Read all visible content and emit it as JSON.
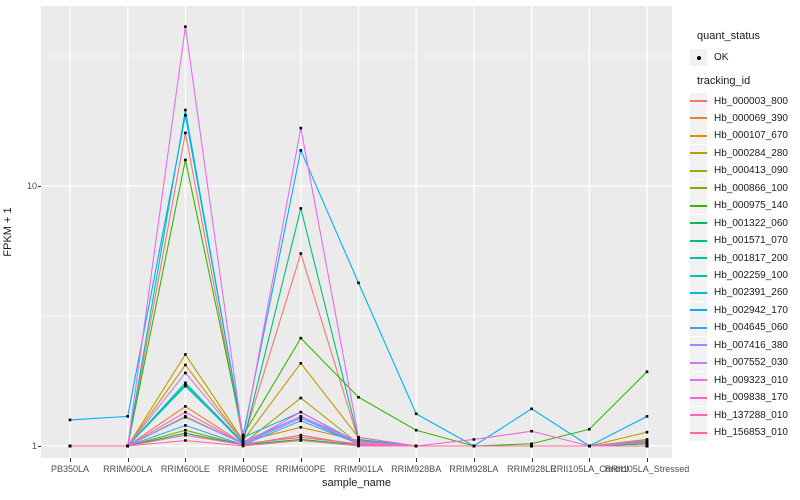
{
  "figure": {
    "background": "#FFFFFF",
    "panel_background": "#EBEBEB",
    "grid_color": "#FFFFFF",
    "tick_color": "#333333",
    "tick_label_color": "#4D4D4D",
    "point_color": "#000000"
  },
  "legend": {
    "quant_status_title": "quant_status",
    "quant_status_items": [
      {
        "label": "OK",
        "marker": "black-point"
      }
    ],
    "tracking_id_title": "tracking_id"
  },
  "chart_data": {
    "type": "line",
    "title": "",
    "xlabel": "sample_name",
    "ylabel": "FPKM + 1",
    "y_scale": "log10",
    "y_ticks": [
      1,
      10
    ],
    "y_minor_gridlines": [
      3.162,
      31.623
    ],
    "ylim": [
      0.9,
      49
    ],
    "grid": "white major/minor on gray panel",
    "legend_position": "right",
    "marker": "small black point on every value",
    "categories": [
      "PB350LA",
      "RRIM600LA",
      "RRIM600LE",
      "RRIM600SE",
      "RRIM600PE",
      "RRIM901LA",
      "RRIM928BA",
      "RRIM928LA",
      "RRIM928LE",
      "RRII105LA_Control",
      "RRII105LA_Stressed"
    ],
    "series": [
      {
        "name": "Hb_000003_800",
        "color": "#F8766D",
        "values": [
          1,
          1,
          16.0,
          1.05,
          5.5,
          1.05,
          1,
          1,
          1,
          1,
          1.02
        ]
      },
      {
        "name": "Hb_000069_390",
        "color": "#EA8331",
        "values": [
          1,
          1,
          1.42,
          1.02,
          1.08,
          1.02,
          1,
          1,
          1,
          1,
          1
        ]
      },
      {
        "name": "Hb_000107_670",
        "color": "#D89000",
        "values": [
          1,
          1,
          2.05,
          1.04,
          1.18,
          1.05,
          1,
          1,
          1,
          1,
          1
        ]
      },
      {
        "name": "Hb_000284_280",
        "color": "#C09B00",
        "values": [
          1,
          1,
          2.25,
          1.05,
          2.08,
          1.08,
          1,
          1,
          1,
          1,
          1.13
        ]
      },
      {
        "name": "Hb_000413_090",
        "color": "#A3A500",
        "values": [
          1,
          1,
          1.3,
          1.02,
          1.53,
          1.02,
          1,
          1,
          1,
          1,
          1.06
        ]
      },
      {
        "name": "Hb_000866_100",
        "color": "#7CAE00",
        "values": [
          1,
          1,
          1.15,
          1.01,
          1.1,
          1.01,
          1,
          1,
          1,
          1,
          1.04
        ]
      },
      {
        "name": "Hb_000975_140",
        "color": "#39B600",
        "values": [
          1,
          1,
          12.6,
          1.1,
          2.6,
          1.54,
          1.15,
          1,
          1.02,
          1.16,
          1.93
        ]
      },
      {
        "name": "Hb_001322_060",
        "color": "#00BB4E",
        "values": [
          1,
          1,
          1.12,
          1.01,
          1.06,
          1.01,
          1,
          1,
          1,
          1,
          1.02
        ]
      },
      {
        "name": "Hb_001571_070",
        "color": "#00BF7D",
        "values": [
          1,
          1,
          1.75,
          1.03,
          8.2,
          1.06,
          1,
          1,
          1,
          1,
          1
        ]
      },
      {
        "name": "Hb_001817_200",
        "color": "#00C1A3",
        "values": [
          1,
          1,
          1.7,
          1.03,
          1.3,
          1.02,
          1,
          1,
          1,
          1,
          1
        ]
      },
      {
        "name": "Hb_002259_100",
        "color": "#00BFC4",
        "values": [
          1,
          1,
          19.6,
          1.08,
          1.35,
          1.03,
          1,
          1,
          1,
          1,
          1
        ]
      },
      {
        "name": "Hb_002391_260",
        "color": "#00BAE0",
        "values": [
          1,
          1,
          1.72,
          1.02,
          1.28,
          1.02,
          1,
          1,
          1,
          1,
          1
        ]
      },
      {
        "name": "Hb_002942_170",
        "color": "#00B0F6",
        "values": [
          1.26,
          1.3,
          18.7,
          1.1,
          13.7,
          4.24,
          1.33,
          1,
          1.39,
          1,
          1.3
        ]
      },
      {
        "name": "Hb_004645_060",
        "color": "#35A2FF",
        "values": [
          1,
          1,
          1.2,
          1.01,
          1.25,
          1.02,
          1,
          1,
          1,
          1,
          1
        ]
      },
      {
        "name": "Hb_007416_380",
        "color": "#9590FF",
        "values": [
          1,
          1,
          1.29,
          1.02,
          1.28,
          1.03,
          1,
          1,
          1,
          1,
          1.03
        ]
      },
      {
        "name": "Hb_007552_030",
        "color": "#C77CFF",
        "values": [
          1,
          1,
          1.91,
          1.04,
          1.3,
          1.04,
          1,
          1,
          1,
          1,
          1
        ]
      },
      {
        "name": "Hb_009323_010",
        "color": "#E76BF3",
        "values": [
          1,
          1,
          41.0,
          1.06,
          16.7,
          1.08,
          1,
          1,
          1,
          1,
          1
        ]
      },
      {
        "name": "Hb_009838_170",
        "color": "#FA62DB",
        "values": [
          1,
          1,
          1.35,
          1.02,
          1.35,
          1.02,
          1,
          1.06,
          1.14,
          1,
          1.05
        ]
      },
      {
        "name": "Hb_137288_010",
        "color": "#FF62BC",
        "values": [
          1,
          1,
          1.1,
          1.01,
          1.1,
          1.01,
          1,
          1,
          1,
          1,
          1
        ]
      },
      {
        "name": "Hb_156853_010",
        "color": "#FF6A98",
        "values": [
          1,
          1,
          1.05,
          1,
          1.05,
          1,
          1,
          1,
          1,
          1,
          1
        ]
      }
    ]
  }
}
